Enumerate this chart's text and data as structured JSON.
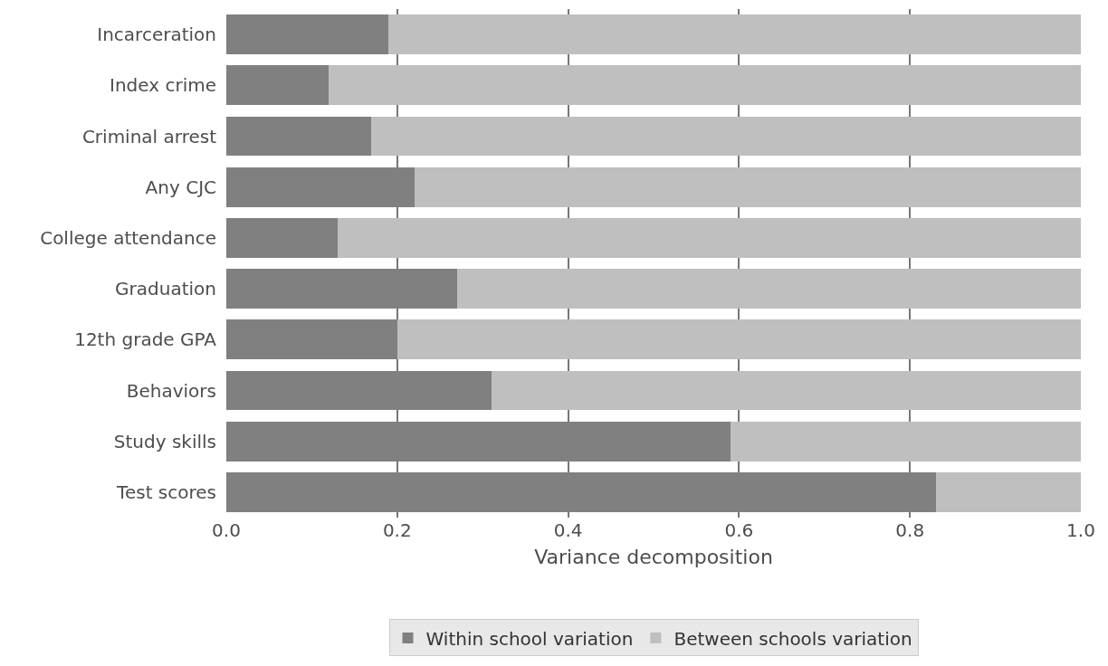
{
  "chart_data": {
    "type": "bar",
    "orientation": "horizontal",
    "stacked": true,
    "xlabel": "Variance decomposition",
    "categories": [
      "Incarceration",
      "Index crime",
      "Criminal arrest",
      "Any CJC",
      "College attendance",
      "Graduation",
      "12th grade GPA",
      "Behaviors",
      "Study skills",
      "Test scores"
    ],
    "series": [
      {
        "name": "Within school variation",
        "color": "#808080",
        "values": [
          0.19,
          0.12,
          0.17,
          0.22,
          0.13,
          0.27,
          0.2,
          0.31,
          0.59,
          0.83
        ]
      },
      {
        "name": "Between schools variation",
        "color": "#bfbfbf",
        "values": [
          0.81,
          0.88,
          0.83,
          0.78,
          0.87,
          0.73,
          0.8,
          0.69,
          0.41,
          0.17
        ]
      }
    ],
    "xlim": [
      0,
      1
    ],
    "xticks": [
      {
        "value": 0,
        "label": "0.0"
      },
      0.2,
      0.4,
      0.6,
      0.8,
      {
        "value": 1,
        "label": "1.0"
      }
    ],
    "grid": "x",
    "legend": "bottom"
  }
}
